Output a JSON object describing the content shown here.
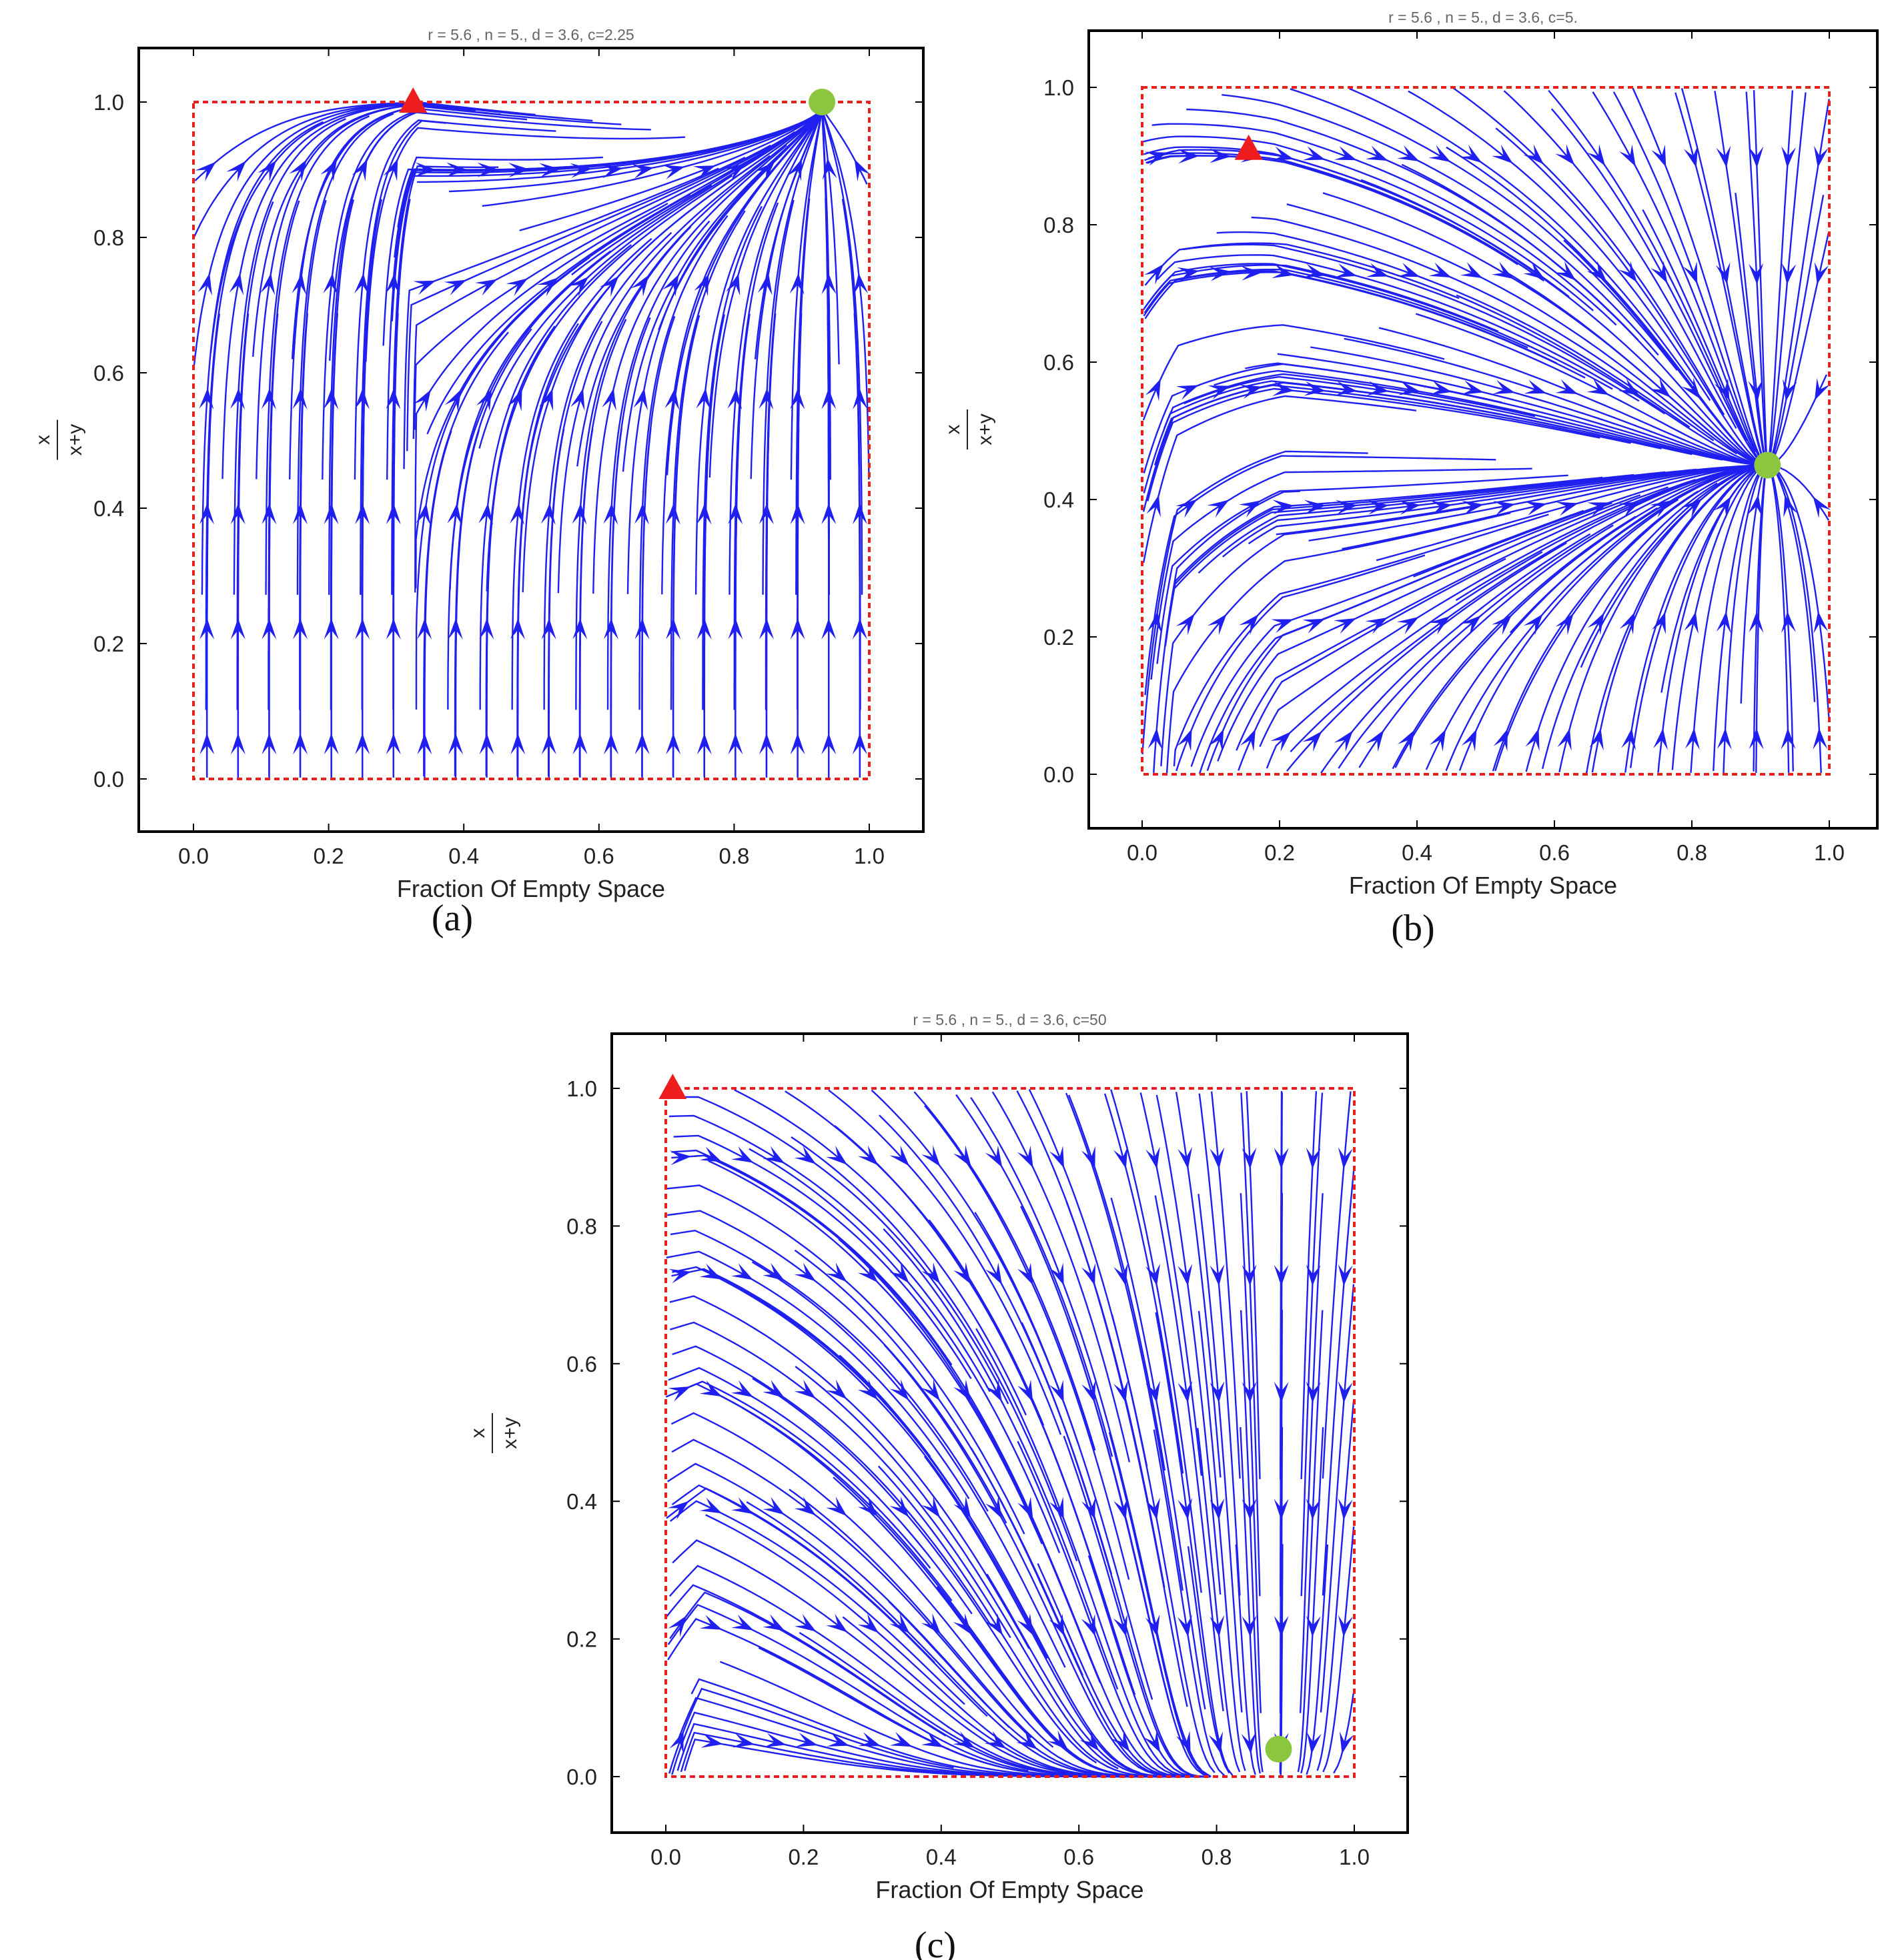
{
  "chart_data": [
    {
      "type": "streamplot",
      "panel": "a",
      "caption": "(a)",
      "title": "r = 5.6 ,  n = 5., d = 3.6, c=2.25",
      "xlabel": "Fraction Of Empty Space",
      "ylabel_num": "x",
      "ylabel_den": "x+y",
      "xlim": [
        -0.08,
        1.08
      ],
      "ylim": [
        -0.08,
        1.08
      ],
      "xticks": [
        "0.0",
        "0.2",
        "0.4",
        "0.6",
        "0.8",
        "1.0"
      ],
      "yticks": [
        "0.0",
        "0.2",
        "0.4",
        "0.6",
        "0.8",
        "1.0"
      ],
      "region": [
        0,
        0,
        1,
        1
      ],
      "unstable_point": [
        0.325,
        1.0
      ],
      "stable_point": [
        0.93,
        1.0
      ],
      "colors": {
        "stream": "#1f1fef",
        "boundary": "#e8201c",
        "stable": "#8cc63f",
        "unstable": "#ee1c1c"
      }
    },
    {
      "type": "streamplot",
      "panel": "b",
      "caption": "(b)",
      "title": "r = 5.6 ,  n = 5., d = 3.6, c=5.",
      "xlabel": "Fraction Of Empty Space",
      "ylabel_num": "x",
      "ylabel_den": "x+y",
      "xlim": [
        -0.08,
        1.08
      ],
      "ylim": [
        -0.08,
        1.08
      ],
      "xticks": [
        "0.0",
        "0.2",
        "0.4",
        "0.6",
        "0.8",
        "1.0"
      ],
      "yticks": [
        "0.0",
        "0.2",
        "0.4",
        "0.6",
        "0.8",
        "1.0"
      ],
      "region": [
        0,
        0,
        1,
        1
      ],
      "unstable_point": [
        0.155,
        0.91
      ],
      "stable_point": [
        0.91,
        0.45
      ],
      "colors": {
        "stream": "#1f1fef",
        "boundary": "#e8201c",
        "stable": "#8cc63f",
        "unstable": "#ee1c1c"
      }
    },
    {
      "type": "streamplot",
      "panel": "c",
      "caption": "(c)",
      "title": "r = 5.6 ,  n = 5., d = 3.6, c=50",
      "xlabel": "Fraction Of Empty Space",
      "ylabel_num": "x",
      "ylabel_den": "x+y",
      "xlim": [
        -0.08,
        1.08
      ],
      "ylim": [
        -0.08,
        1.08
      ],
      "xticks": [
        "0.0",
        "0.2",
        "0.4",
        "0.6",
        "0.8",
        "1.0"
      ],
      "yticks": [
        "0.0",
        "0.2",
        "0.4",
        "0.6",
        "0.8",
        "1.0"
      ],
      "region": [
        0,
        0,
        1,
        1
      ],
      "unstable_point": [
        0.01,
        1.0
      ],
      "stable_point": [
        0.89,
        0.04
      ],
      "colors": {
        "stream": "#1f1fef",
        "boundary": "#e8201c",
        "stable": "#8cc63f",
        "unstable": "#ee1c1c"
      }
    }
  ]
}
